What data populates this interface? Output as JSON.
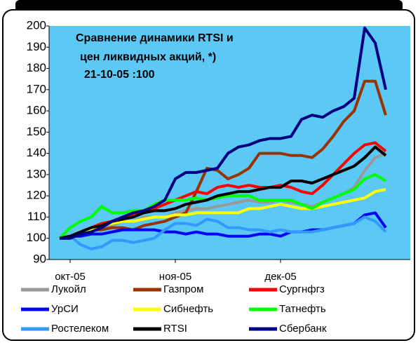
{
  "chart_data": {
    "type": "line",
    "title_lines": [
      "Сравнение динамики RTSI и",
      "цен ликвидных акций, *)",
      "21-10-05 :100"
    ],
    "categories": [
      null,
      "окт-05",
      null,
      null,
      null,
      null,
      null,
      null,
      null,
      null,
      null,
      "ноя-05",
      null,
      null,
      null,
      null,
      null,
      null,
      null,
      null,
      null,
      "дек-05",
      null,
      null,
      null,
      null,
      null,
      null,
      null,
      null,
      null,
      null
    ],
    "ylim": [
      90,
      200
    ],
    "yticks": [
      90,
      100,
      110,
      120,
      130,
      140,
      150,
      160,
      170,
      180,
      190,
      200
    ],
    "series": [
      {
        "name": "Лукойл",
        "color": "#999999",
        "values": [
          100,
          101,
          103,
          104,
          105,
          106,
          108,
          108,
          110,
          110,
          110,
          112,
          113,
          114,
          114,
          115,
          116,
          117,
          118,
          117,
          117,
          118,
          117,
          116,
          115,
          117,
          119,
          121,
          124,
          132,
          138,
          140
        ]
      },
      {
        "name": "Газпром",
        "color": "#993300",
        "values": [
          100,
          101,
          103,
          104,
          104,
          105,
          105,
          104,
          106,
          107,
          108,
          110,
          112,
          122,
          133,
          132,
          128,
          130,
          133,
          140,
          140,
          140,
          139,
          139,
          138,
          142,
          148,
          155,
          160,
          174,
          174,
          158
        ]
      },
      {
        "name": "Сургнфгз",
        "color": "#ff0000",
        "values": [
          100,
          101,
          103,
          105,
          107,
          108,
          110,
          111,
          112,
          114,
          116,
          118,
          120,
          122,
          121,
          124,
          125,
          124,
          125,
          124,
          124,
          125,
          124,
          122,
          121,
          125,
          130,
          135,
          140,
          144,
          145,
          141
        ]
      },
      {
        "name": "УрСИ",
        "color": "#0000ff",
        "values": [
          100,
          101,
          101,
          102,
          102,
          103,
          104,
          104,
          104,
          104,
          103,
          103,
          102,
          103,
          102,
          102,
          101,
          101,
          101,
          102,
          102,
          101,
          103,
          103,
          104,
          104,
          105,
          106,
          107,
          111,
          112,
          105
        ]
      },
      {
        "name": "Сибнефть",
        "color": "#ffff00",
        "values": [
          100,
          101,
          103,
          104,
          106,
          107,
          108,
          108,
          109,
          110,
          110,
          111,
          111,
          112,
          112,
          112,
          112,
          112,
          114,
          114,
          115,
          116,
          115,
          114,
          114,
          115,
          116,
          117,
          118,
          119,
          122,
          123
        ]
      },
      {
        "name": "Татнефть",
        "color": "#00ff00",
        "values": [
          100,
          105,
          108,
          110,
          115,
          112,
          112,
          113,
          113,
          116,
          118,
          118,
          118,
          119,
          118,
          119,
          120,
          120,
          120,
          118,
          118,
          118,
          118,
          116,
          114,
          117,
          119,
          121,
          123,
          128,
          130,
          127
        ]
      },
      {
        "name": "Ростелеком",
        "color": "#3399ff",
        "values": [
          100,
          101,
          97,
          95,
          96,
          99,
          99,
          98,
          99,
          100,
          104,
          107,
          107,
          106,
          109,
          108,
          105,
          105,
          104,
          104,
          103,
          104,
          103,
          103,
          103,
          104,
          105,
          106,
          107,
          110,
          108,
          103
        ]
      },
      {
        "name": "RTSI",
        "color": "#000000",
        "values": [
          100,
          101,
          103,
          105,
          106,
          108,
          109,
          110,
          112,
          113,
          113,
          114,
          116,
          117,
          118,
          120,
          121,
          122,
          122,
          123,
          124,
          124,
          127,
          127,
          126,
          128,
          130,
          132,
          134,
          138,
          143,
          139
        ]
      },
      {
        "name": "Сбербанк",
        "color": "#000080",
        "values": [
          100,
          100,
          102,
          103,
          105,
          108,
          110,
          112,
          113,
          115,
          118,
          128,
          131,
          131,
          132,
          133,
          140,
          143,
          144,
          146,
          147,
          147,
          148,
          156,
          158,
          157,
          160,
          162,
          166,
          199,
          192,
          170
        ]
      }
    ]
  }
}
